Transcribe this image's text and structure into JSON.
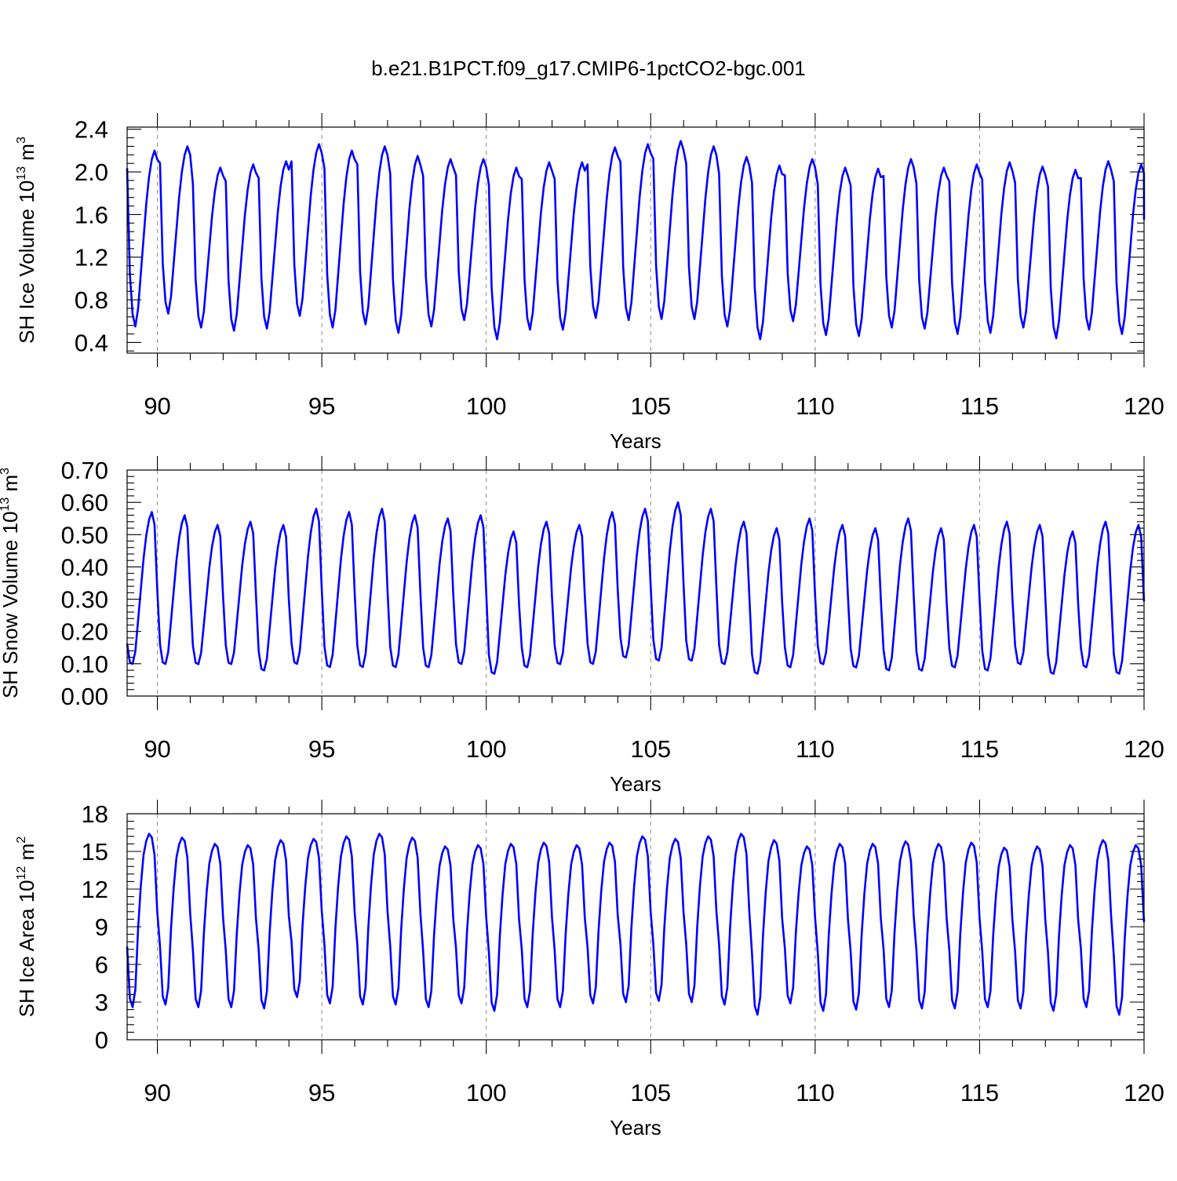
{
  "title": "b.e21.B1PCT.f09_g17.CMIP6-1pctCO2-bgc.001",
  "colors": {
    "series": "#0000ff",
    "axis": "#000000",
    "refline": "#888888"
  },
  "chart_data": [
    {
      "type": "line",
      "ylabel_main": "SH Ice Volume 10",
      "ylabel_exp": "13",
      "ylabel_unit": " m",
      "ylabel_unit_exp": "3",
      "xlabel": "Years",
      "xlim": [
        89.08,
        120.0
      ],
      "ylim": [
        0.3,
        2.42
      ],
      "xticks": [
        90,
        95,
        100,
        105,
        110,
        115,
        120
      ],
      "yticks": [
        0.4,
        0.8,
        1.2,
        1.6,
        2.0,
        2.4
      ],
      "ytick_labels": [
        "0.4",
        "0.8",
        "1.2",
        "1.6",
        "2.0",
        "2.4"
      ],
      "series_color": "#0000ff",
      "start_year": 89.08,
      "seasonal_shape": [
        0.9,
        0.3,
        0.07,
        0.0,
        0.1,
        0.3,
        0.5,
        0.7,
        0.85,
        0.95,
        1.0,
        0.95
      ],
      "yearly_min": [
        0.55,
        0.67,
        0.54,
        0.51,
        0.53,
        0.65,
        0.54,
        0.57,
        0.49,
        0.55,
        0.61,
        0.43,
        0.52,
        0.52,
        0.63,
        0.61,
        0.62,
        0.62,
        0.55,
        0.43,
        0.6,
        0.47,
        0.46,
        0.54,
        0.53,
        0.48,
        0.49,
        0.54,
        0.44,
        0.52,
        0.48
      ],
      "yearly_max": [
        2.2,
        2.24,
        2.04,
        2.07,
        2.1,
        2.26,
        2.2,
        2.24,
        2.15,
        2.12,
        2.12,
        2.04,
        2.09,
        2.09,
        2.23,
        2.26,
        2.29,
        2.24,
        2.14,
        2.06,
        2.12,
        2.04,
        2.03,
        2.12,
        2.04,
        2.07,
        2.09,
        2.05,
        2.02,
        2.1,
        2.07
      ],
      "end_value": 1.55
    },
    {
      "type": "line",
      "ylabel_main": "SH Snow Volume 10",
      "ylabel_exp": "13",
      "ylabel_unit": " m",
      "ylabel_unit_exp": "3",
      "xlabel": "Years",
      "xlim": [
        89.08,
        120.0
      ],
      "ylim": [
        0.0,
        0.7
      ],
      "xticks": [
        90,
        95,
        100,
        105,
        110,
        115,
        120
      ],
      "yticks": [
        0.0,
        0.1,
        0.2,
        0.3,
        0.4,
        0.5,
        0.6,
        0.7
      ],
      "ytick_labels": [
        "0.00",
        "0.10",
        "0.20",
        "0.30",
        "0.40",
        "0.50",
        "0.60",
        "0.70"
      ],
      "series_color": "#0000ff",
      "start_year": 89.08,
      "seasonal_shape": [
        0.15,
        0.03,
        0.02,
        0.1,
        0.3,
        0.5,
        0.7,
        0.85,
        0.95,
        1.0,
        0.92,
        0.5
      ],
      "yearly_min": [
        0.09,
        0.09,
        0.09,
        0.09,
        0.07,
        0.09,
        0.08,
        0.08,
        0.08,
        0.08,
        0.09,
        0.06,
        0.08,
        0.09,
        0.09,
        0.11,
        0.1,
        0.1,
        0.09,
        0.06,
        0.08,
        0.09,
        0.08,
        0.07,
        0.07,
        0.08,
        0.07,
        0.09,
        0.06,
        0.08,
        0.06
      ],
      "yearly_max": [
        0.57,
        0.56,
        0.53,
        0.54,
        0.53,
        0.58,
        0.57,
        0.58,
        0.56,
        0.55,
        0.56,
        0.51,
        0.54,
        0.53,
        0.57,
        0.58,
        0.6,
        0.58,
        0.54,
        0.52,
        0.55,
        0.53,
        0.52,
        0.55,
        0.52,
        0.53,
        0.54,
        0.53,
        0.51,
        0.54,
        0.53
      ],
      "end_value": 0.3
    },
    {
      "type": "line",
      "ylabel_main": "SH Ice Area 10",
      "ylabel_exp": "12",
      "ylabel_unit": " m",
      "ylabel_unit_exp": "2",
      "xlabel": "Years",
      "xlim": [
        89.08,
        120.0
      ],
      "ylim": [
        0,
        18
      ],
      "xticks": [
        90,
        95,
        100,
        105,
        110,
        115,
        120
      ],
      "yticks": [
        0,
        3,
        6,
        9,
        12,
        15,
        18
      ],
      "ytick_labels": [
        "0",
        "3",
        "6",
        "9",
        "12",
        "15",
        "18"
      ],
      "series_color": "#0000ff",
      "start_year": 89.08,
      "seasonal_shape": [
        0.35,
        0.05,
        0.0,
        0.1,
        0.45,
        0.7,
        0.88,
        0.96,
        1.0,
        0.98,
        0.88,
        0.55
      ],
      "yearly_min": [
        2.6,
        2.8,
        2.6,
        2.6,
        2.5,
        3.4,
        2.9,
        2.8,
        2.8,
        2.6,
        2.9,
        2.3,
        2.6,
        2.6,
        2.9,
        3.0,
        3.1,
        3.0,
        2.8,
        2.0,
        2.9,
        2.3,
        2.4,
        2.6,
        2.5,
        2.5,
        2.6,
        2.5,
        2.3,
        2.6,
        2.0
      ],
      "yearly_max": [
        16.4,
        16.1,
        15.6,
        15.5,
        15.9,
        16.0,
        16.2,
        16.4,
        16.1,
        15.4,
        15.5,
        15.6,
        15.7,
        15.5,
        15.7,
        16.2,
        16.0,
        16.2,
        16.4,
        15.9,
        15.4,
        15.6,
        15.6,
        15.8,
        15.6,
        15.7,
        15.3,
        15.4,
        15.5,
        15.9,
        15.5
      ],
      "end_value": 9.6
    }
  ]
}
